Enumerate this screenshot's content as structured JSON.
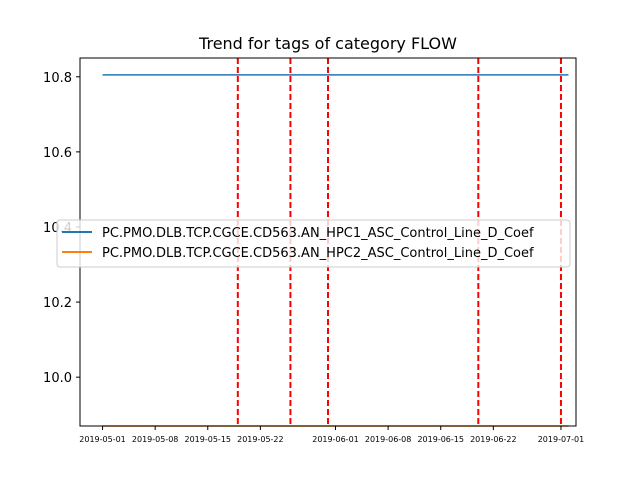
{
  "chart_data": {
    "type": "line",
    "title": "Trend for tags of category FLOW",
    "xlabel": "",
    "ylabel": "",
    "x_ticks": [
      "2019-05-01",
      "2019-05-08",
      "2019-05-15",
      "2019-05-22",
      "2019-06-01",
      "2019-06-08",
      "2019-06-15",
      "2019-06-22",
      "2019-07-01"
    ],
    "y_ticks": [
      "10.0",
      "10.2",
      "10.4",
      "10.6",
      "10.8"
    ],
    "y_tick_values": [
      10.0,
      10.2,
      10.4,
      10.6,
      10.8
    ],
    "xlim": [
      "2019-04-28",
      "2019-07-03"
    ],
    "ylim": [
      9.87,
      10.85
    ],
    "series": [
      {
        "name": "PC.PMO.DLB.TCP.CGCE.CD563.AN_HPC1_ASC_Control_Line_D_Coef",
        "color": "#1f77b4",
        "x": [
          "2019-05-01",
          "2019-07-02"
        ],
        "y": [
          10.805,
          10.805
        ]
      },
      {
        "name": "PC.PMO.DLB.TCP.CGCE.CD563.AN_HPC2_ASC_Control_Line_D_Coef",
        "color": "#ff7f0e",
        "x": [
          "2019-05-01",
          "2019-07-02"
        ],
        "y": [
          9.87,
          9.87
        ]
      }
    ],
    "vertical_lines": {
      "color": "#ff0000",
      "style": "dashed",
      "x": [
        "2019-05-19",
        "2019-05-26",
        "2019-05-31",
        "2019-06-20",
        "2019-07-01"
      ]
    },
    "legend_position": "center-left",
    "grid": false
  }
}
